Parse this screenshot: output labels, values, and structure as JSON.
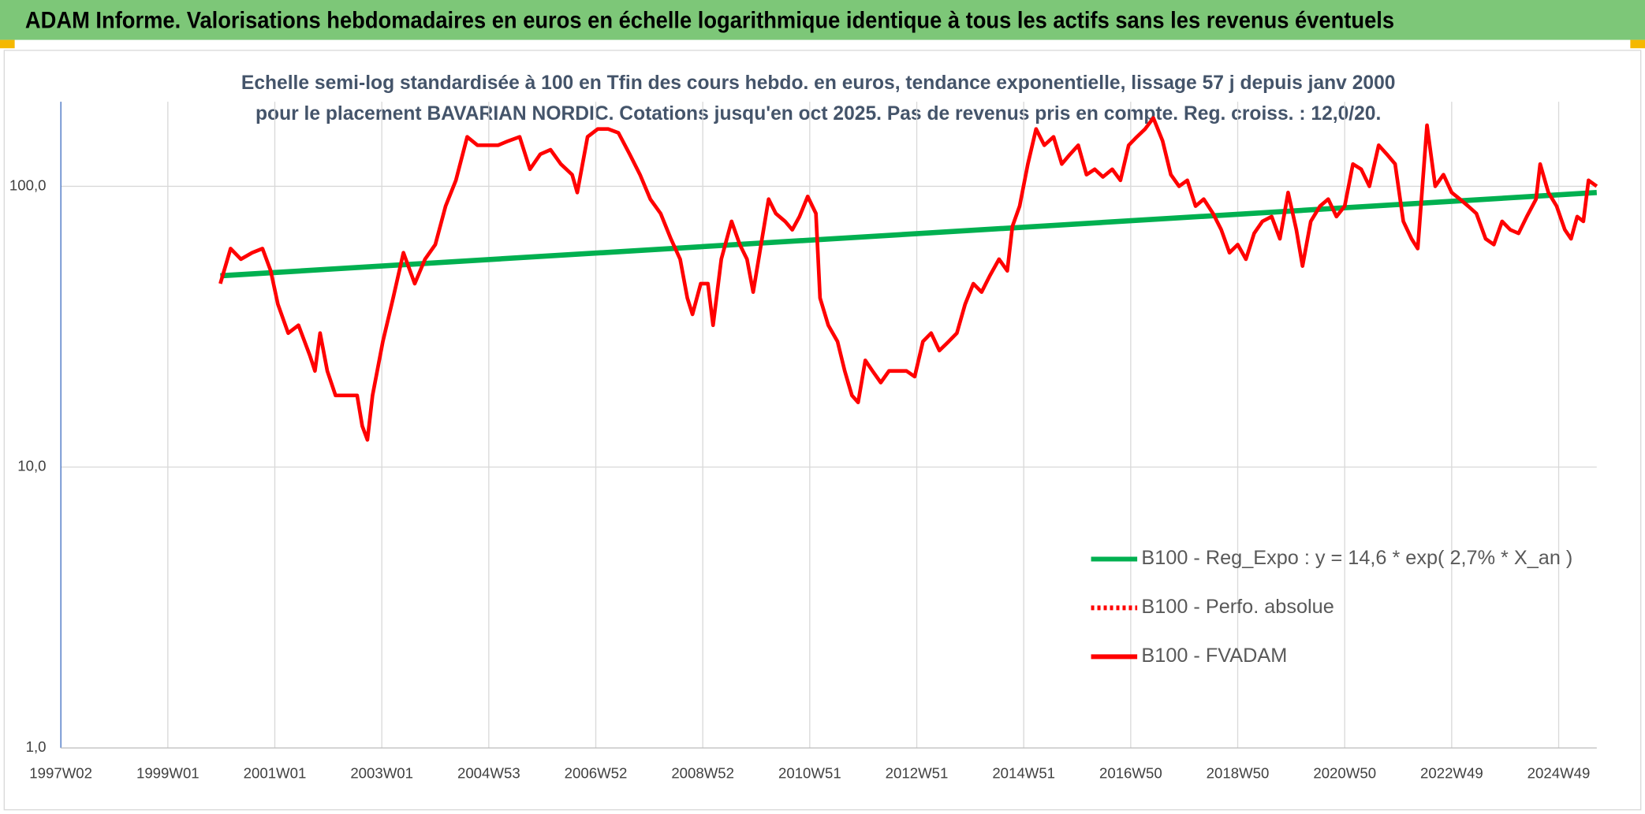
{
  "header": {
    "title": "ADAM Informe. Valorisations hebdomadaires en euros en échelle logarithmique identique à tous les actifs sans les revenus éventuels"
  },
  "chart_data": {
    "type": "line",
    "title": "Echelle semi-log standardisée à 100 en Tfin des cours hebdo. en euros, tendance exponentielle, lissage 57 j depuis janv 2000 pour le placement BAVARIAN NORDIC. Cotations jusqu'en oct 2025. Pas de revenus pris en compte. Reg. croiss. : 12,0/20.",
    "log_y": true,
    "grid": true,
    "legend": "lower right",
    "xlim": [
      0,
      1493
    ],
    "ylim": [
      1,
      200
    ],
    "yticks": [
      {
        "value": 1,
        "label": "1,0"
      },
      {
        "value": 10,
        "label": "10,0"
      },
      {
        "value": 100,
        "label": "100,0"
      }
    ],
    "xticks": [
      {
        "value": 0,
        "label": "1997W02"
      },
      {
        "value": 104,
        "label": "1999W01"
      },
      {
        "value": 208,
        "label": "2001W01"
      },
      {
        "value": 312,
        "label": "2003W01"
      },
      {
        "value": 416,
        "label": "2004W53"
      },
      {
        "value": 520,
        "label": "2006W52"
      },
      {
        "value": 624,
        "label": "2008W52"
      },
      {
        "value": 728,
        "label": "2010W51"
      },
      {
        "value": 832,
        "label": "2012W51"
      },
      {
        "value": 936,
        "label": "2014W51"
      },
      {
        "value": 1040,
        "label": "2016W50"
      },
      {
        "value": 1144,
        "label": "2018W50"
      },
      {
        "value": 1248,
        "label": "2020W50"
      },
      {
        "value": 1352,
        "label": "2022W49"
      },
      {
        "value": 1456,
        "label": "2024W49"
      }
    ],
    "series": [
      {
        "name": "B100 - Reg_Expo : y = 14,6 * exp( 2,7% *  X_an )",
        "color": "#00b050",
        "style": "solid",
        "x": [
          155,
          1493
        ],
        "values": [
          48,
          95
        ]
      },
      {
        "name": "B100 - Perfo. absolue",
        "color": "#ff0000",
        "style": "dotted",
        "x": [],
        "values": []
      },
      {
        "name": "B100 - FVADAM",
        "color": "#ff0000",
        "style": "solid",
        "x": [
          155,
          165,
          175,
          186,
          196,
          204,
          211,
          221,
          231,
          242,
          247,
          252,
          259,
          267,
          277,
          288,
          293,
          298,
          303,
          313,
          323,
          333,
          344,
          354,
          364,
          374,
          384,
          395,
          405,
          415,
          425,
          435,
          446,
          456,
          466,
          476,
          486,
          497,
          502,
          512,
          522,
          532,
          542,
          553,
          563,
          573,
          583,
          593,
          602,
          609,
          614,
          622,
          629,
          634,
          642,
          652,
          660,
          667,
          673,
          680,
          688,
          695,
          704,
          711,
          718,
          726,
          734,
          738,
          746,
          755,
          762,
          769,
          775,
          782,
          789,
          797,
          805,
          814,
          822,
          830,
          838,
          846,
          854,
          863,
          871,
          879,
          887,
          895,
          903,
          912,
          920,
          925,
          932,
          940,
          948,
          956,
          965,
          973,
          981,
          989,
          997,
          1005,
          1013,
          1022,
          1030,
          1038,
          1046,
          1054,
          1062,
          1071,
          1079,
          1087,
          1095,
          1103,
          1111,
          1120,
          1128,
          1136,
          1144,
          1152,
          1160,
          1168,
          1177,
          1185,
          1193,
          1201,
          1207,
          1215,
          1224,
          1232,
          1240,
          1248,
          1256,
          1264,
          1272,
          1281,
          1289,
          1297,
          1305,
          1313,
          1319,
          1328,
          1336,
          1344,
          1352,
          1360,
          1368,
          1376,
          1385,
          1393,
          1401,
          1409,
          1417,
          1425,
          1434,
          1438,
          1446,
          1454,
          1462,
          1468,
          1474,
          1480,
          1485,
          1493
        ],
        "values": [
          45,
          60,
          55,
          58,
          60,
          50,
          38,
          30,
          32,
          25,
          22,
          30,
          22,
          18,
          18,
          18,
          14,
          12.5,
          18,
          28,
          40,
          58,
          45,
          55,
          62,
          85,
          105,
          150,
          140,
          140,
          140,
          145,
          150,
          115,
          130,
          135,
          120,
          110,
          95,
          150,
          160,
          160,
          155,
          130,
          110,
          90,
          80,
          65,
          55,
          40,
          35,
          45,
          45,
          32,
          55,
          75,
          62,
          55,
          42,
          60,
          90,
          80,
          75,
          70,
          78,
          92,
          80,
          40,
          32,
          28,
          22,
          18,
          17,
          24,
          22,
          20,
          22,
          22,
          22,
          21,
          28,
          30,
          26,
          28,
          30,
          38,
          45,
          42,
          48,
          55,
          50,
          72,
          85,
          120,
          160,
          140,
          150,
          120,
          130,
          140,
          110,
          115,
          108,
          115,
          105,
          140,
          150,
          160,
          175,
          145,
          110,
          100,
          105,
          85,
          90,
          80,
          70,
          58,
          62,
          55,
          68,
          75,
          78,
          65,
          95,
          70,
          52,
          75,
          85,
          90,
          78,
          85,
          120,
          115,
          100,
          140,
          130,
          120,
          75,
          65,
          60,
          165,
          100,
          110,
          95,
          90,
          85,
          80,
          65,
          62,
          75,
          70,
          68,
          78,
          90,
          120,
          95,
          85,
          70,
          65,
          78,
          75,
          105,
          100
        ]
      }
    ]
  }
}
